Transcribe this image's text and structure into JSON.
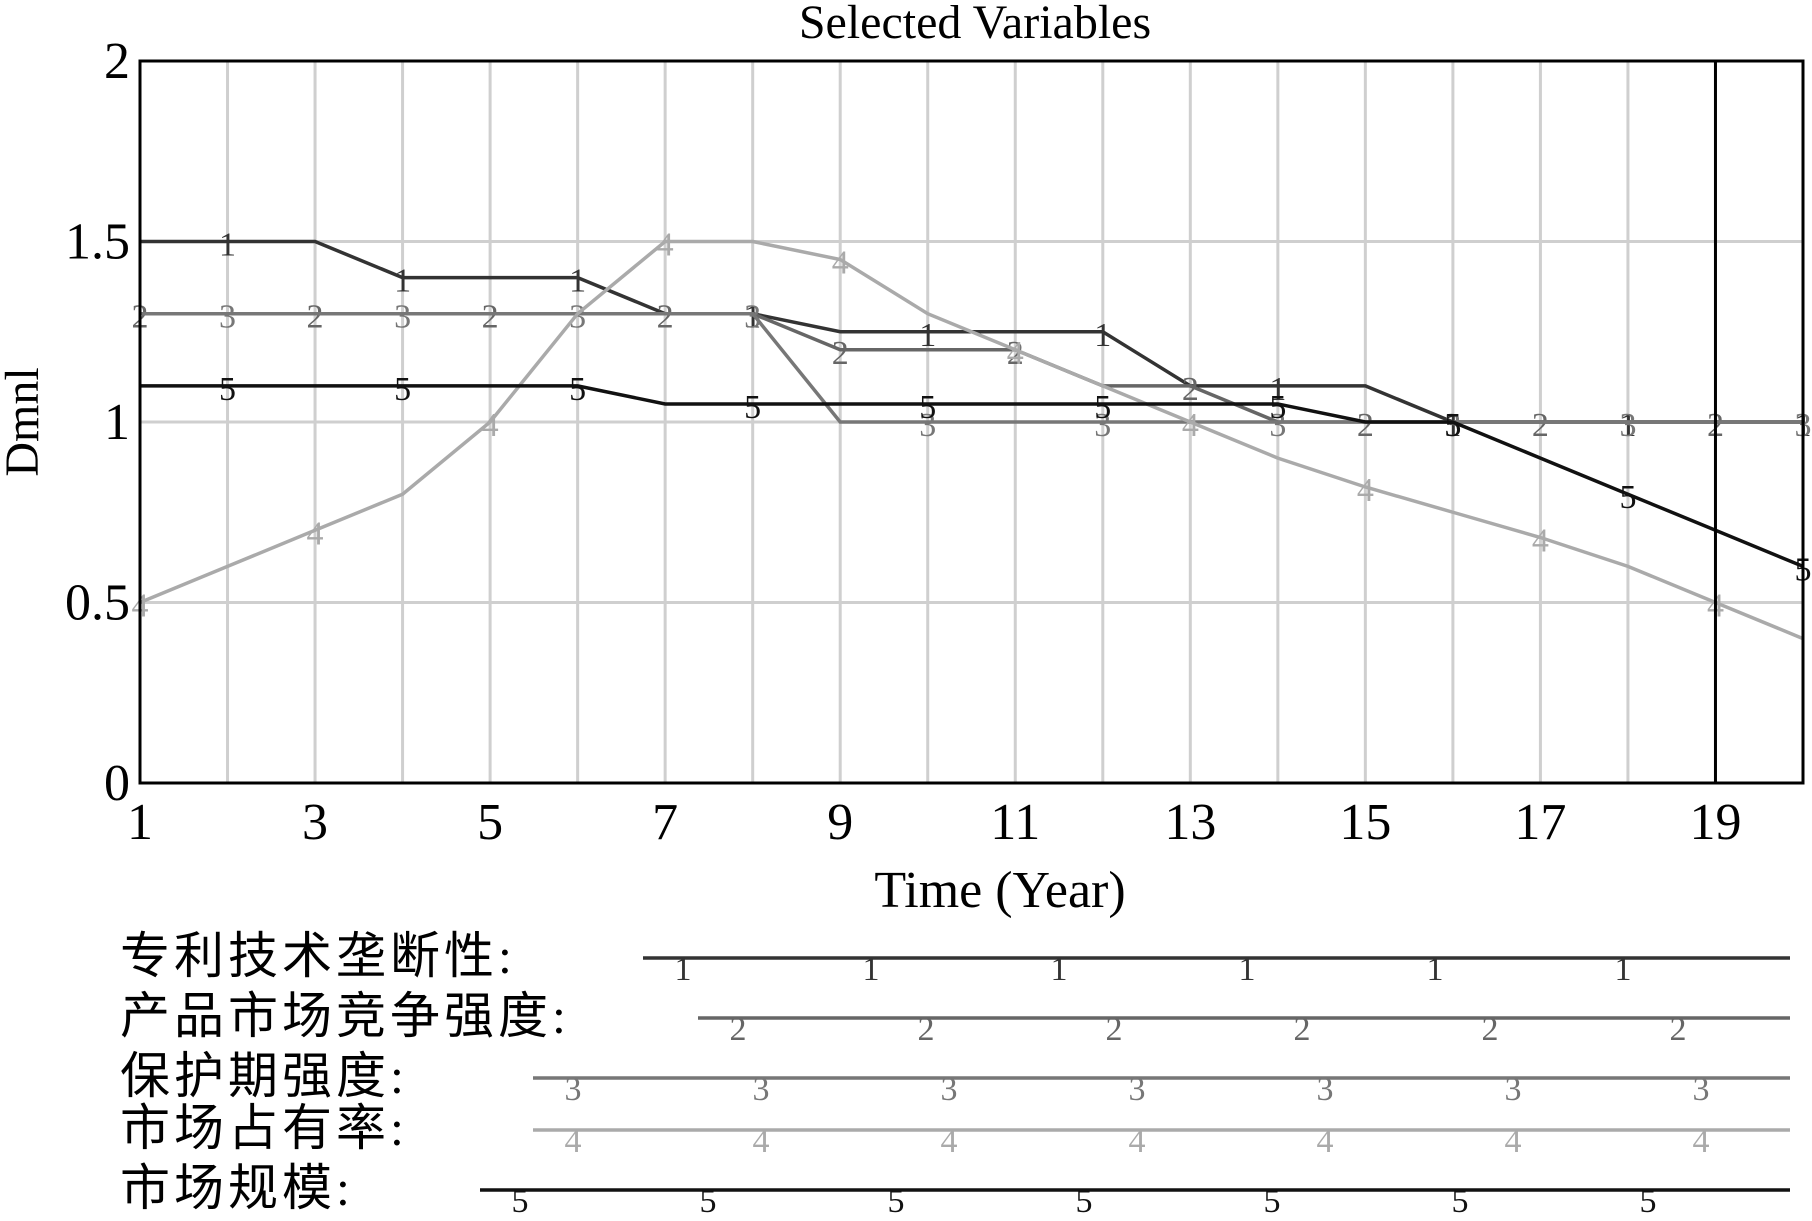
{
  "chart_data": {
    "type": "line",
    "title": "Selected Variables",
    "xlabel": "Time (Year)",
    "ylabel": "Dmnl",
    "xlim": [
      1,
      20
    ],
    "ylim": [
      0,
      2
    ],
    "x_ticks": [
      "1",
      "3",
      "5",
      "7",
      "9",
      "11",
      "13",
      "15",
      "17",
      "19"
    ],
    "y_ticks": [
      "0",
      "0.5",
      "1",
      "1.5",
      "2"
    ],
    "grid": true,
    "x": [
      1,
      2,
      3,
      4,
      5,
      6,
      7,
      8,
      9,
      10,
      11,
      12,
      13,
      14,
      15,
      16,
      17,
      18,
      19,
      20
    ],
    "series": [
      {
        "name": "专利技术垄断性:",
        "marker": "1",
        "color": "#333333",
        "values": [
          1.5,
          1.5,
          1.5,
          1.4,
          1.4,
          1.4,
          1.3,
          1.3,
          1.25,
          1.25,
          1.25,
          1.25,
          1.1,
          1.1,
          1.1,
          1.0,
          1.0,
          1.0,
          1.0,
          1.0
        ]
      },
      {
        "name": "产品市场竞争强度:",
        "marker": "2",
        "color": "#666666",
        "values": [
          1.3,
          1.3,
          1.3,
          1.3,
          1.3,
          1.3,
          1.3,
          1.3,
          1.2,
          1.2,
          1.2,
          1.1,
          1.1,
          1.0,
          1.0,
          1.0,
          1.0,
          1.0,
          1.0,
          1.0
        ]
      },
      {
        "name": "保护期强度:",
        "marker": "3",
        "color": "#777777",
        "values": [
          1.3,
          1.3,
          1.3,
          1.3,
          1.3,
          1.3,
          1.3,
          1.3,
          1.0,
          1.0,
          1.0,
          1.0,
          1.0,
          1.0,
          1.0,
          1.0,
          1.0,
          1.0,
          1.0,
          1.0
        ]
      },
      {
        "name": "市场占有率:",
        "marker": "4",
        "color": "#aaaaaa",
        "values": [
          0.5,
          0.6,
          0.7,
          0.8,
          1.0,
          1.3,
          1.5,
          1.5,
          1.45,
          1.3,
          1.2,
          1.1,
          1.0,
          0.9,
          0.82,
          0.75,
          0.68,
          0.6,
          0.5,
          0.4
        ]
      },
      {
        "name": "市场规模:",
        "marker": "5",
        "color": "#111111",
        "values": [
          1.1,
          1.1,
          1.1,
          1.1,
          1.1,
          1.1,
          1.05,
          1.05,
          1.05,
          1.05,
          1.05,
          1.05,
          1.05,
          1.05,
          1.0,
          1.0,
          0.9,
          0.8,
          0.7,
          0.6
        ]
      }
    ],
    "reference_line_x": 19
  }
}
